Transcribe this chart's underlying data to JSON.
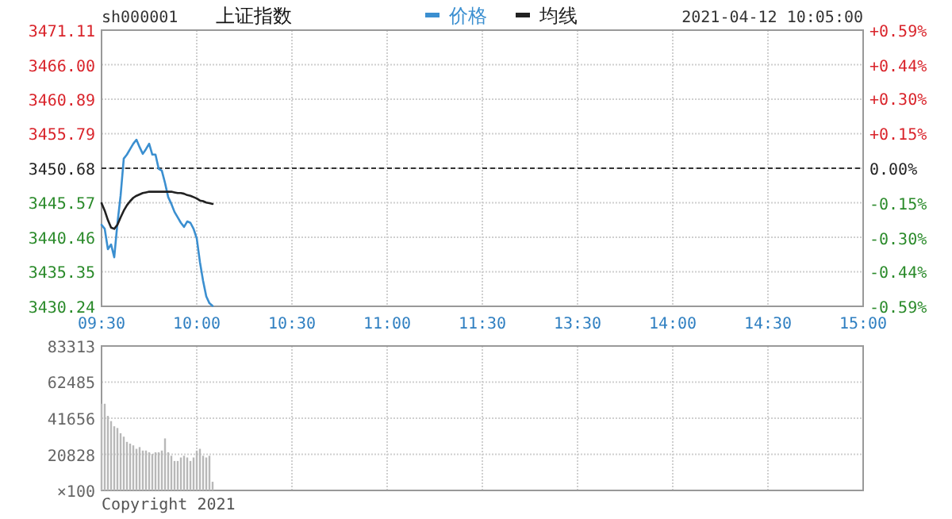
{
  "chart_data": [
    {
      "type": "line",
      "title": "上证指数",
      "annotations": [
        "sh000001",
        "2021-04-12 10:05:00"
      ],
      "legend": "top",
      "grid": true,
      "categories": [
        "09:30",
        null,
        null,
        null,
        null,
        null,
        null,
        null,
        null,
        null,
        null,
        null,
        null,
        null,
        null,
        null,
        null,
        null,
        null,
        null,
        null,
        null,
        null,
        null,
        null,
        null,
        null,
        null,
        null,
        null,
        "10:00",
        null,
        null,
        null,
        null,
        null,
        null,
        null,
        null,
        null,
        null,
        null,
        null,
        null,
        null,
        null,
        null,
        null,
        null,
        null,
        null,
        null,
        null,
        null,
        null,
        null,
        null,
        null,
        null,
        null,
        "10:30",
        null,
        null,
        null,
        null,
        null,
        null,
        null,
        null,
        null,
        null,
        null,
        null,
        null,
        null,
        null,
        null,
        null,
        null,
        null,
        null,
        null,
        null,
        null,
        null,
        null,
        null,
        null,
        null,
        null,
        "11:00",
        null,
        null,
        null,
        null,
        null,
        null,
        null,
        null,
        null,
        null,
        null,
        null,
        null,
        null,
        null,
        null,
        null,
        null,
        null,
        null,
        null,
        null,
        null,
        null,
        null,
        null,
        null,
        null,
        null,
        "11:30",
        null,
        null,
        null,
        null,
        null,
        null,
        null,
        null,
        null,
        null,
        null,
        null,
        null,
        null,
        null,
        null,
        null,
        null,
        null,
        null,
        null,
        null,
        null,
        null,
        null,
        null,
        null,
        null,
        null,
        "13:30",
        null,
        null,
        null,
        null,
        null,
        null,
        null,
        null,
        null,
        null,
        null,
        null,
        null,
        null,
        null,
        null,
        null,
        null,
        null,
        null,
        null,
        null,
        null,
        null,
        null,
        null,
        null,
        null,
        null,
        "14:00",
        null,
        null,
        null,
        null,
        null,
        null,
        null,
        null,
        null,
        null,
        null,
        null,
        null,
        null,
        null,
        null,
        null,
        null,
        null,
        null,
        null,
        null,
        null,
        null,
        null,
        null,
        null,
        null,
        null,
        "14:30",
        null,
        null,
        null,
        null,
        null,
        null,
        null,
        null,
        null,
        null,
        null,
        null,
        null,
        null,
        null,
        null,
        null,
        null,
        null,
        null,
        null,
        null,
        null,
        null,
        null,
        null,
        null,
        null,
        null,
        "15:00"
      ],
      "series": [
        {
          "name": "价格",
          "color": "#3b8fd0",
          "values": [
            3442.3,
            3441.7,
            3438.7,
            3439.4,
            3437.5,
            3442.5,
            3446.6,
            3452.1,
            3452.7,
            3453.5,
            3454.3,
            3454.9,
            3453.8,
            3452.8,
            3453.5,
            3454.3,
            3452.7,
            3452.7,
            3450.6,
            3450.3,
            3448.5,
            3446.4,
            3445.4,
            3444.2,
            3443.4,
            3442.6,
            3442.0,
            3442.8,
            3442.6,
            3441.7,
            3440.3,
            3436.8,
            3434.0,
            3431.7,
            3430.7,
            3430.3,
            null,
            null,
            null,
            null,
            null,
            null,
            null,
            null,
            null,
            null,
            null,
            null,
            null,
            null,
            null,
            null,
            null,
            null,
            null,
            null,
            null,
            null,
            null,
            null,
            null,
            null,
            null,
            null,
            null,
            null,
            null,
            null,
            null,
            null,
            null,
            null,
            null,
            null,
            null,
            null,
            null,
            null,
            null,
            null,
            null,
            null,
            null,
            null,
            null,
            null,
            null,
            null,
            null,
            null,
            null,
            null,
            null,
            null,
            null,
            null,
            null,
            null,
            null,
            null,
            null,
            null,
            null,
            null,
            null,
            null,
            null,
            null,
            null,
            null,
            null,
            null,
            null,
            null,
            null,
            null,
            null,
            null,
            null,
            null,
            null,
            null,
            null,
            null,
            null,
            null,
            null,
            null,
            null,
            null,
            null,
            null,
            null,
            null,
            null,
            null,
            null,
            null,
            null,
            null,
            null,
            null,
            null,
            null,
            null,
            null,
            null,
            null,
            null,
            null,
            null,
            null,
            null,
            null,
            null,
            null,
            null,
            null,
            null,
            null,
            null,
            null,
            null,
            null,
            null,
            null,
            null,
            null,
            null,
            null,
            null,
            null,
            null,
            null,
            null,
            null,
            null,
            null,
            null,
            null,
            null,
            null,
            null,
            null,
            null,
            null,
            null,
            null,
            null,
            null,
            null,
            null,
            null,
            null,
            null,
            null,
            null,
            null,
            null,
            null,
            null,
            null,
            null,
            null,
            null,
            null,
            null,
            null,
            null,
            null,
            null,
            null,
            null,
            null,
            null,
            null,
            null,
            null,
            null,
            null,
            null,
            null,
            null,
            null,
            null,
            null,
            null,
            null,
            null,
            null,
            null,
            null,
            null,
            null,
            null,
            null,
            null,
            null,
            null,
            null,
            null
          ]
        },
        {
          "name": "均线",
          "color": "#222222",
          "values": [
            3445.5,
            3444.4,
            3443.0,
            3441.9,
            3441.7,
            3442.3,
            3443.4,
            3444.4,
            3445.2,
            3445.8,
            3446.3,
            3446.6,
            3446.8,
            3447.0,
            3447.1,
            3447.2,
            3447.2,
            3447.2,
            3447.2,
            3447.2,
            3447.2,
            3447.2,
            3447.2,
            3447.1,
            3447.0,
            3447.0,
            3446.9,
            3446.7,
            3446.6,
            3446.4,
            3446.2,
            3445.9,
            3445.8,
            3445.6,
            3445.5,
            3445.4,
            null,
            null,
            null,
            null,
            null,
            null,
            null,
            null,
            null,
            null,
            null,
            null,
            null,
            null,
            null,
            null,
            null,
            null,
            null,
            null,
            null,
            null,
            null,
            null,
            null,
            null,
            null,
            null,
            null,
            null,
            null,
            null,
            null,
            null,
            null,
            null,
            null,
            null,
            null,
            null,
            null,
            null,
            null,
            null,
            null,
            null,
            null,
            null,
            null,
            null,
            null,
            null,
            null,
            null,
            null,
            null,
            null,
            null,
            null,
            null,
            null,
            null,
            null,
            null,
            null,
            null,
            null,
            null,
            null,
            null,
            null,
            null,
            null,
            null,
            null,
            null,
            null,
            null,
            null,
            null,
            null,
            null,
            null,
            null,
            null,
            null,
            null,
            null,
            null,
            null,
            null,
            null,
            null,
            null,
            null,
            null,
            null,
            null,
            null,
            null,
            null,
            null,
            null,
            null,
            null,
            null,
            null,
            null,
            null,
            null,
            null,
            null,
            null,
            null,
            null,
            null,
            null,
            null,
            null,
            null,
            null,
            null,
            null,
            null,
            null,
            null,
            null,
            null,
            null,
            null,
            null,
            null,
            null,
            null,
            null,
            null,
            null,
            null,
            null,
            null,
            null,
            null,
            null,
            null,
            null,
            null,
            null,
            null,
            null,
            null,
            null,
            null,
            null,
            null,
            null,
            null,
            null,
            null,
            null,
            null,
            null,
            null,
            null,
            null,
            null,
            null,
            null,
            null,
            null,
            null,
            null,
            null,
            null,
            null,
            null,
            null,
            null,
            null,
            null,
            null,
            null,
            null,
            null,
            null,
            null,
            null,
            null,
            null,
            null,
            null,
            null,
            null,
            null,
            null,
            null,
            null,
            null,
            null,
            null,
            null,
            null,
            null,
            null,
            null,
            null
          ]
        }
      ],
      "ylim": [
        3430.24,
        3471.11
      ],
      "yticks": [
        3430.24,
        3435.35,
        3440.46,
        3445.57,
        3450.68,
        3455.79,
        3460.89,
        {
          "value": 3466,
          "label": "3466.00"
        },
        3471.11
      ],
      "y2lim": [
        -0.59,
        0.59
      ],
      "y2ticks": [
        {
          "value": -0.59,
          "label": "-0.59%"
        },
        {
          "value": -0.44,
          "label": "-0.44%"
        },
        {
          "value": -0.3,
          "label": "-0.30%"
        },
        {
          "value": -0.15,
          "label": "-0.15%"
        },
        {
          "value": 0,
          "label": "0.00%"
        },
        {
          "value": 0.15,
          "label": "+0.15%"
        },
        {
          "value": 0.3,
          "label": "+0.30%"
        },
        {
          "value": 0.44,
          "label": "+0.44%"
        },
        {
          "value": 0.59,
          "label": "+0.59%"
        }
      ],
      "ref_lines": [
        {
          "axis": "y",
          "value": 3450.68,
          "color": "#333333",
          "line_style": "dashed"
        }
      ]
    },
    {
      "type": "bar",
      "ylabel": "×100",
      "annotations": [
        "Copyright 2021"
      ],
      "grid": true,
      "tick_labels": "y",
      "categories": [
        null,
        null,
        null,
        null,
        null,
        null,
        null,
        null,
        null,
        null,
        null,
        null,
        null,
        null,
        null,
        null,
        null,
        null,
        null,
        null,
        null,
        null,
        null,
        null,
        null,
        null,
        null,
        null,
        null,
        null,
        null,
        null,
        null,
        null,
        null,
        null,
        null,
        null,
        null,
        null,
        null,
        null,
        null,
        null,
        null,
        null,
        null,
        null,
        null,
        null,
        null,
        null,
        null,
        null,
        null,
        null,
        null,
        null,
        null,
        null,
        null,
        null,
        null,
        null,
        null,
        null,
        null,
        null,
        null,
        null,
        null,
        null,
        null,
        null,
        null,
        null,
        null,
        null,
        null,
        null,
        null,
        null,
        null,
        null,
        null,
        null,
        null,
        null,
        null,
        null,
        null,
        null,
        null,
        null,
        null,
        null,
        null,
        null,
        null,
        null,
        null,
        null,
        null,
        null,
        null,
        null,
        null,
        null,
        null,
        null,
        null,
        null,
        null,
        null,
        null,
        null,
        null,
        null,
        null,
        null,
        null,
        null,
        null,
        null,
        null,
        null,
        null,
        null,
        null,
        null,
        null,
        null,
        null,
        null,
        null,
        null,
        null,
        null,
        null,
        null,
        null,
        null,
        null,
        null,
        null,
        null,
        null,
        null,
        null,
        null,
        null,
        null,
        null,
        null,
        null,
        null,
        null,
        null,
        null,
        null,
        null,
        null,
        null,
        null,
        null,
        null,
        null,
        null,
        null,
        null,
        null,
        null,
        null,
        null,
        null,
        null,
        null,
        null,
        null,
        null,
        null,
        null,
        null,
        null,
        null,
        null,
        null,
        null,
        null,
        null,
        null,
        null,
        null,
        null,
        null,
        null,
        null,
        null,
        null,
        null,
        null,
        null,
        null,
        null,
        null,
        null,
        null,
        null,
        null,
        null,
        null,
        null,
        null,
        null,
        null,
        null,
        null,
        null,
        null,
        null,
        null,
        null,
        null,
        null,
        null,
        null,
        null,
        null,
        null,
        null,
        null,
        null,
        null,
        null,
        null,
        null,
        null,
        null,
        null,
        null,
        null
      ],
      "series": [
        {
          "color": "#b8b8b8",
          "values": [
            50000,
            50000,
            43000,
            40000,
            37000,
            36000,
            33000,
            31000,
            28000,
            27000,
            26000,
            24000,
            25000,
            23000,
            23000,
            22000,
            21000,
            22000,
            22000,
            23000,
            30000,
            22000,
            20000,
            17000,
            17000,
            19000,
            20000,
            19000,
            17000,
            19000,
            23000,
            24000,
            20000,
            19000,
            20000,
            5000,
            null,
            null,
            null,
            null,
            null,
            null,
            null,
            null,
            null,
            null,
            null,
            null,
            null,
            null,
            null,
            null,
            null,
            null,
            null,
            null,
            null,
            null,
            null,
            null,
            null,
            null,
            null,
            null,
            null,
            null,
            null,
            null,
            null,
            null,
            null,
            null,
            null,
            null,
            null,
            null,
            null,
            null,
            null,
            null,
            null,
            null,
            null,
            null,
            null,
            null,
            null,
            null,
            null,
            null,
            null,
            null,
            null,
            null,
            null,
            null,
            null,
            null,
            null,
            null,
            null,
            null,
            null,
            null,
            null,
            null,
            null,
            null,
            null,
            null,
            null,
            null,
            null,
            null,
            null,
            null,
            null,
            null,
            null,
            null,
            null,
            null,
            null,
            null,
            null,
            null,
            null,
            null,
            null,
            null,
            null,
            null,
            null,
            null,
            null,
            null,
            null,
            null,
            null,
            null,
            null,
            null,
            null,
            null,
            null,
            null,
            null,
            null,
            null,
            null,
            null,
            null,
            null,
            null,
            null,
            null,
            null,
            null,
            null,
            null,
            null,
            null,
            null,
            null,
            null,
            null,
            null,
            null,
            null,
            null,
            null,
            null,
            null,
            null,
            null,
            null,
            null,
            null,
            null,
            null,
            null,
            null,
            null,
            null,
            null,
            null,
            null,
            null,
            null,
            null,
            null,
            null,
            null,
            null,
            null,
            null,
            null,
            null,
            null,
            null,
            null,
            null,
            null,
            null,
            null,
            null,
            null,
            null,
            null,
            null,
            null,
            null,
            null,
            null,
            null,
            null,
            null,
            null,
            null,
            null,
            null,
            null,
            null,
            null,
            null,
            null,
            null,
            null,
            null,
            null,
            null,
            null,
            null,
            null,
            null,
            null,
            null,
            null,
            null,
            null,
            null
          ]
        }
      ],
      "ylim": [
        0,
        83313
      ],
      "yticks": [
        20828,
        41656,
        62485,
        83313
      ]
    }
  ]
}
